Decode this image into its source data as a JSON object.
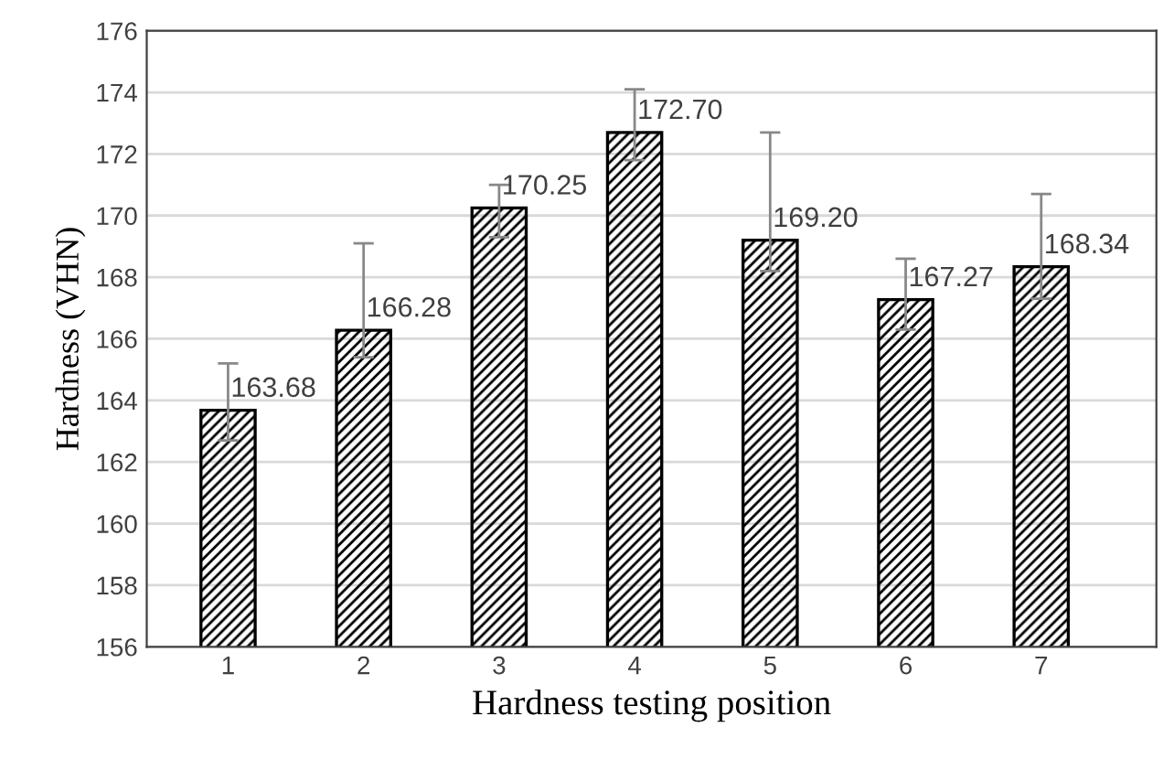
{
  "chart_data": {
    "type": "bar",
    "xlabel": "Hardness testing position",
    "ylabel": "Hardness (VHN)",
    "categories": [
      "1",
      "2",
      "3",
      "4",
      "5",
      "6",
      "7"
    ],
    "values": [
      163.68,
      166.28,
      170.25,
      172.7,
      169.2,
      167.27,
      168.34
    ],
    "value_labels": [
      "163.68",
      "166.28",
      "170.25",
      "172.70",
      "169.20",
      "167.27",
      "168.34"
    ],
    "errors": [
      [
        162.7,
        165.2
      ],
      [
        165.4,
        169.1
      ],
      [
        169.3,
        171.0
      ],
      [
        171.8,
        174.1
      ],
      [
        168.2,
        172.7
      ],
      [
        166.3,
        168.6
      ],
      [
        167.3,
        170.7
      ]
    ],
    "ylim": [
      156,
      176
    ],
    "yticks": [
      156,
      158,
      160,
      162,
      164,
      166,
      168,
      170,
      172,
      174,
      176
    ],
    "grid": "y"
  }
}
